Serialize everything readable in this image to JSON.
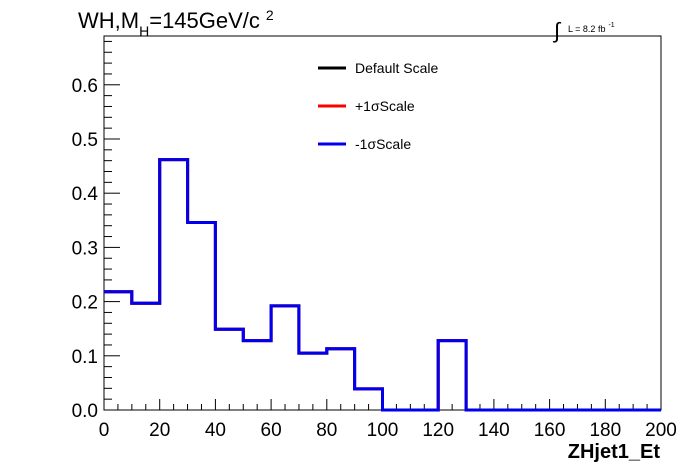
{
  "chart_data": {
    "type": "line",
    "style": "step-histogram",
    "title": {
      "prefix": "WH,M",
      "subscript": "H",
      "value": "=145GeV/c",
      "superscript": "2"
    },
    "lumi": {
      "integral": "∫",
      "text": "L = 8.2 fb",
      "superscript": "-1"
    },
    "xlabel": "ZHjet1_Et",
    "ylabel": "",
    "xlim": [
      0,
      200
    ],
    "ylim": [
      0,
      0.69
    ],
    "x_ticks": [
      0,
      20,
      40,
      60,
      80,
      100,
      120,
      140,
      160,
      180,
      200
    ],
    "x_tick_labels": [
      "0",
      "20",
      "40",
      "60",
      "80",
      "100",
      "120",
      "140",
      "160",
      "180",
      "200"
    ],
    "y_ticks": [
      0,
      0.1,
      0.2,
      0.3,
      0.4,
      0.5,
      0.6
    ],
    "y_tick_labels": [
      "0.0",
      "0.1",
      "0.2",
      "0.3",
      "0.4",
      "0.5",
      "0.6"
    ],
    "bin_edges": [
      0,
      10,
      20,
      30,
      40,
      50,
      60,
      70,
      80,
      90,
      100,
      110,
      120,
      130,
      140,
      150,
      160,
      170,
      180,
      190,
      200
    ],
    "legend_position": "top-center",
    "series": [
      {
        "name": "Default Scale",
        "color": "#000000",
        "values": [
          0.218,
          0.197,
          0.462,
          0.346,
          0.149,
          0.128,
          0.192,
          0.105,
          0.113,
          0.039,
          0.0,
          0.0,
          0.128,
          0.0,
          0.0,
          0.0,
          0.0,
          0.0,
          0.0,
          0.0
        ]
      },
      {
        "name": "+1σScale",
        "color": "#ff0000",
        "values": [
          0.218,
          0.197,
          0.462,
          0.346,
          0.149,
          0.128,
          0.192,
          0.105,
          0.113,
          0.039,
          0.0,
          0.0,
          0.128,
          0.0,
          0.0,
          0.0,
          0.0,
          0.0,
          0.0,
          0.0
        ]
      },
      {
        "name": "-1σScale",
        "color": "#0000ee",
        "values": [
          0.218,
          0.197,
          0.462,
          0.346,
          0.149,
          0.128,
          0.192,
          0.105,
          0.113,
          0.039,
          0.0,
          0.0,
          0.128,
          0.0,
          0.0,
          0.0,
          0.0,
          0.0,
          0.0,
          0.0
        ]
      }
    ]
  }
}
